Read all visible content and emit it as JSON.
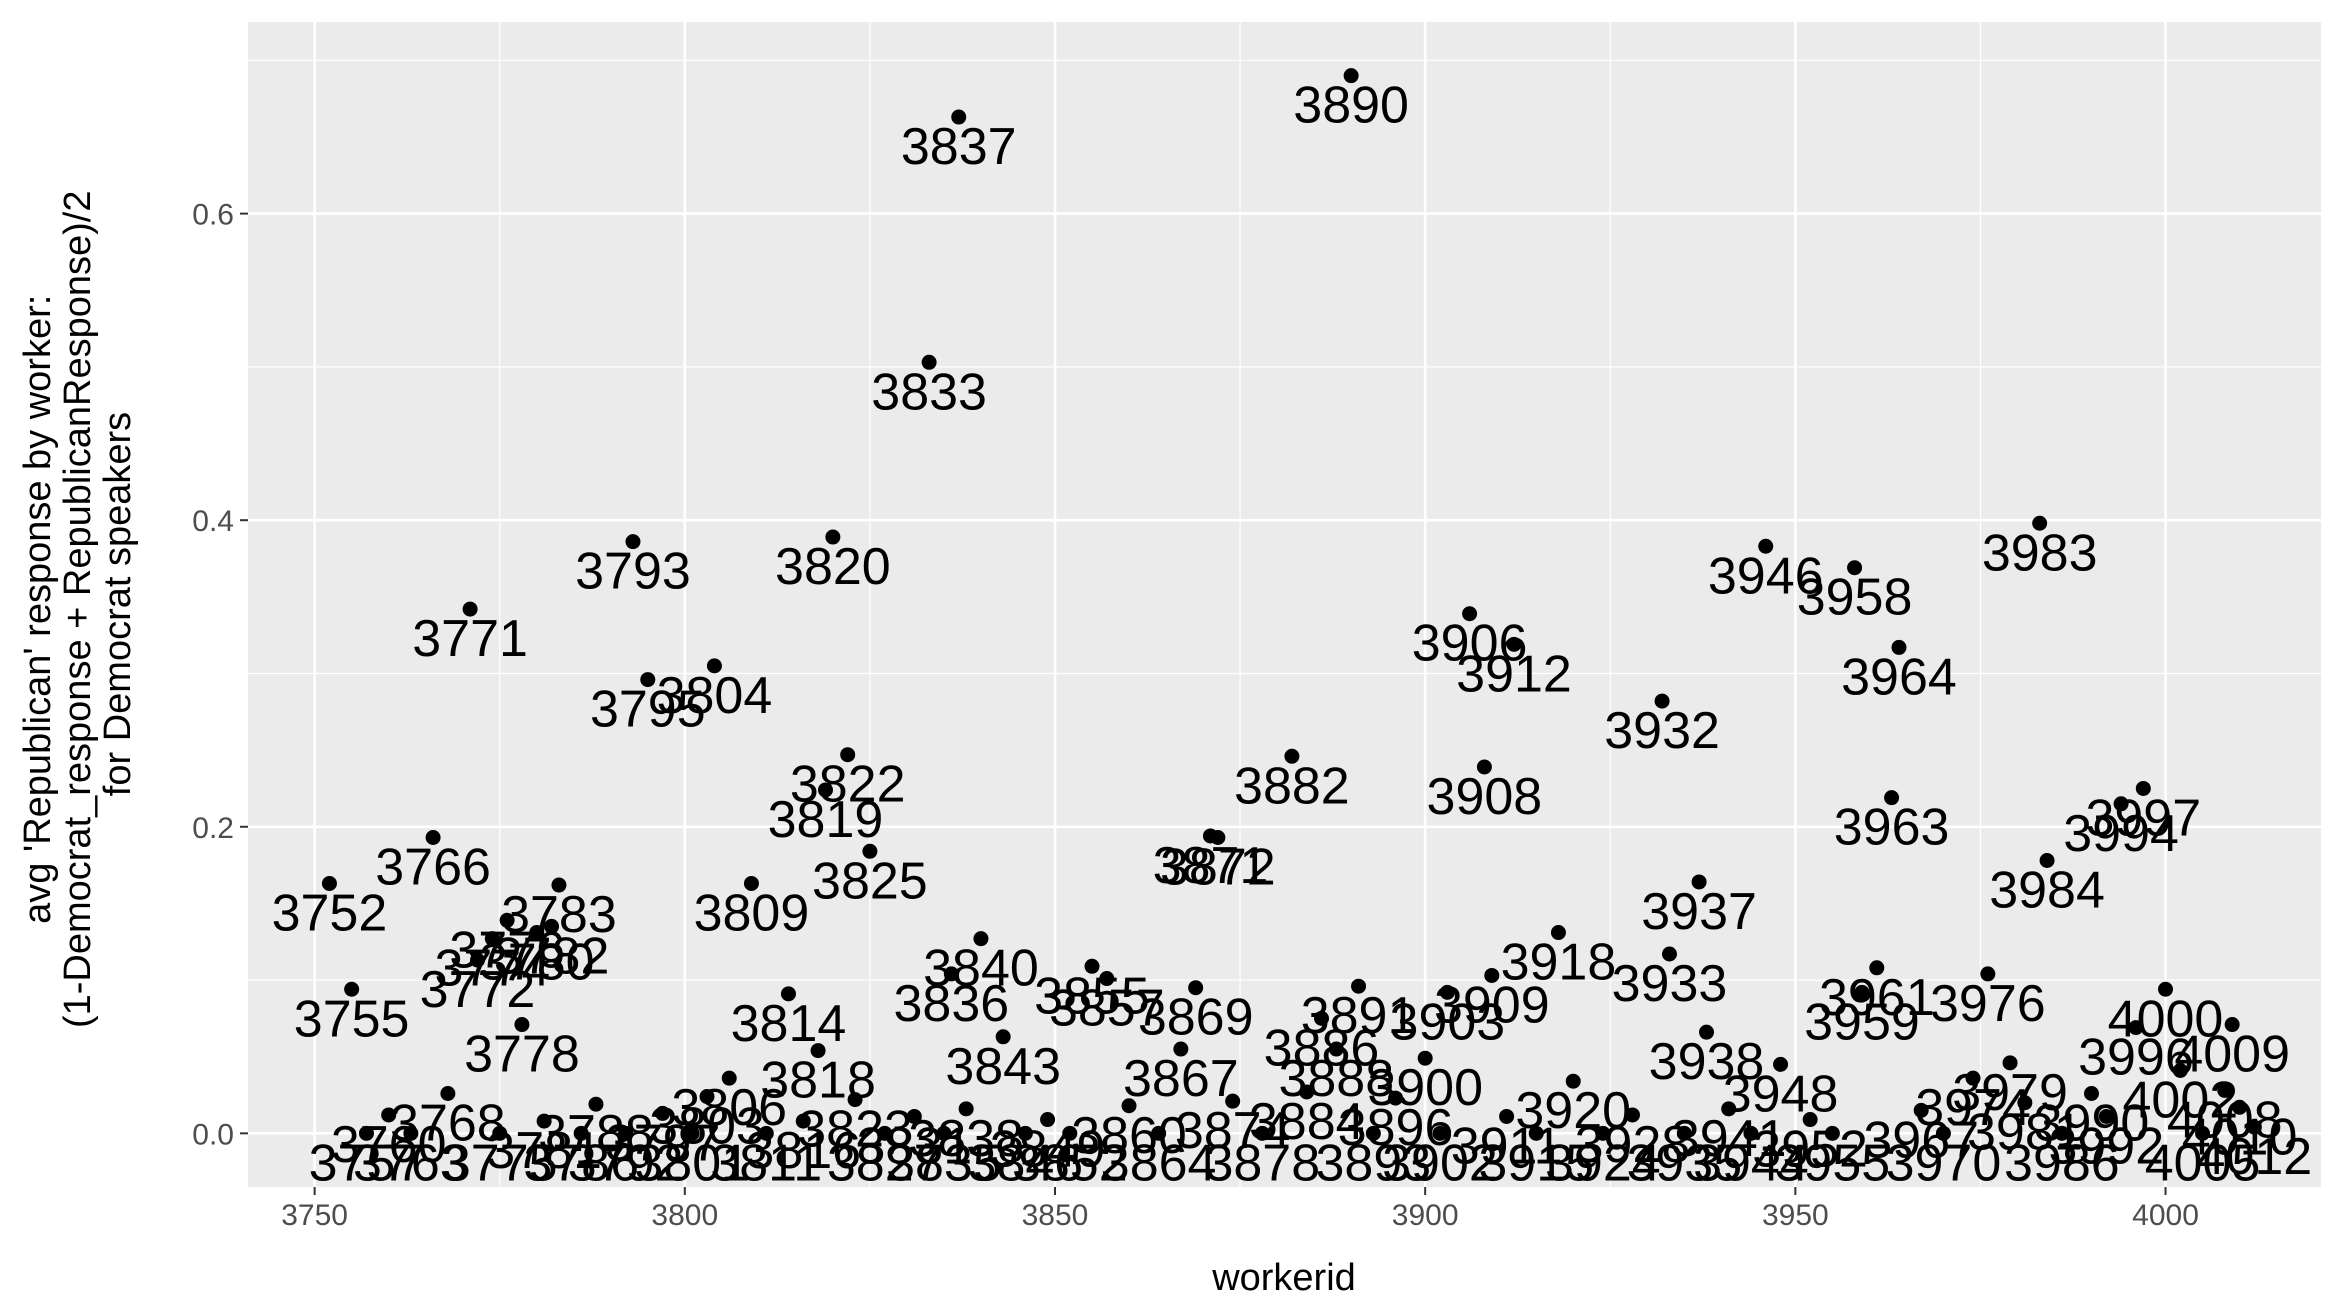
{
  "chart_data": {
    "type": "scatter",
    "xlabel": "workerid",
    "ylabel_lines": [
      "avg 'Republican' response by worker:",
      "(1-Democrat_response + RepublicanResponse)/2",
      "for Democrat speakers"
    ],
    "xlim": [
      3741,
      4021
    ],
    "ylim": [
      -0.035,
      0.725
    ],
    "x_ticks": [
      3750,
      3800,
      3850,
      3900,
      3950,
      4000
    ],
    "x_tick_labels": [
      "3750",
      "3800",
      "3850",
      "3900",
      "3950",
      "4000"
    ],
    "y_ticks": [
      0.0,
      0.2,
      0.4,
      0.6
    ],
    "y_tick_labels": [
      "0.0",
      "0.2",
      "0.4",
      "0.6"
    ],
    "grid": true,
    "background": "#ebebeb",
    "grid_color": "#ffffff",
    "point_color": "#000000",
    "points": [
      {
        "x": 3752,
        "y": 0.163,
        "label": "3752"
      },
      {
        "x": 3755,
        "y": 0.094,
        "label": "3755"
      },
      {
        "x": 3766,
        "y": 0.193,
        "label": "3766"
      },
      {
        "x": 3771,
        "y": 0.342,
        "label": "3771"
      },
      {
        "x": 3772,
        "y": 0.113,
        "label": "3772"
      },
      {
        "x": 3774,
        "y": 0.127,
        "label": "3774"
      },
      {
        "x": 3776,
        "y": 0.139,
        "label": "3776"
      },
      {
        "x": 3778,
        "y": 0.071,
        "label": "3778"
      },
      {
        "x": 3780,
        "y": 0.131,
        "label": "3780"
      },
      {
        "x": 3782,
        "y": 0.135,
        "label": "3782"
      },
      {
        "x": 3783,
        "y": 0.162,
        "label": "3783"
      },
      {
        "x": 3793,
        "y": 0.386,
        "label": "3793"
      },
      {
        "x": 3795,
        "y": 0.296,
        "label": "3795"
      },
      {
        "x": 3804,
        "y": 0.305,
        "label": "3804"
      },
      {
        "x": 3809,
        "y": 0.163,
        "label": "3809"
      },
      {
        "x": 3814,
        "y": 0.091,
        "label": "3814"
      },
      {
        "x": 3818,
        "y": 0.054,
        "label": "3818"
      },
      {
        "x": 3819,
        "y": 0.224,
        "label": "3819"
      },
      {
        "x": 3820,
        "y": 0.389,
        "label": "3820"
      },
      {
        "x": 3822,
        "y": 0.247,
        "label": "3822"
      },
      {
        "x": 3825,
        "y": 0.184,
        "label": "3825"
      },
      {
        "x": 3833,
        "y": 0.503,
        "label": "3833"
      },
      {
        "x": 3836,
        "y": 0.104,
        "label": "3836"
      },
      {
        "x": 3837,
        "y": 0.663,
        "label": "3837"
      },
      {
        "x": 3840,
        "y": 0.127,
        "label": "3840"
      },
      {
        "x": 3843,
        "y": 0.063,
        "label": "3843"
      },
      {
        "x": 3855,
        "y": 0.109,
        "label": "3855"
      },
      {
        "x": 3857,
        "y": 0.101,
        "label": "3857"
      },
      {
        "x": 3867,
        "y": 0.055,
        "label": "3867"
      },
      {
        "x": 3869,
        "y": 0.095,
        "label": "3869"
      },
      {
        "x": 3871,
        "y": 0.194,
        "label": "3871"
      },
      {
        "x": 3872,
        "y": 0.193,
        "label": "3872"
      },
      {
        "x": 3882,
        "y": 0.246,
        "label": "3882"
      },
      {
        "x": 3886,
        "y": 0.075,
        "label": "3886"
      },
      {
        "x": 3888,
        "y": 0.055,
        "label": "3888"
      },
      {
        "x": 3890,
        "y": 0.69,
        "label": "3890"
      },
      {
        "x": 3891,
        "y": 0.096,
        "label": "3891"
      },
      {
        "x": 3900,
        "y": 0.049,
        "label": "3900"
      },
      {
        "x": 3903,
        "y": 0.092,
        "label": "3903"
      },
      {
        "x": 3906,
        "y": 0.339,
        "label": "3906"
      },
      {
        "x": 3908,
        "y": 0.239,
        "label": "3908"
      },
      {
        "x": 3909,
        "y": 0.103,
        "label": "3909"
      },
      {
        "x": 3912,
        "y": 0.319,
        "label": "3912"
      },
      {
        "x": 3918,
        "y": 0.131,
        "label": "3918"
      },
      {
        "x": 3932,
        "y": 0.282,
        "label": "3932"
      },
      {
        "x": 3933,
        "y": 0.117,
        "label": "3933"
      },
      {
        "x": 3937,
        "y": 0.164,
        "label": "3937"
      },
      {
        "x": 3938,
        "y": 0.066,
        "label": "3938"
      },
      {
        "x": 3946,
        "y": 0.383,
        "label": "3946"
      },
      {
        "x": 3948,
        "y": 0.045,
        "label": "3948"
      },
      {
        "x": 3958,
        "y": 0.369,
        "label": "3958"
      },
      {
        "x": 3959,
        "y": 0.092,
        "label": "3959"
      },
      {
        "x": 3961,
        "y": 0.108,
        "label": "3961"
      },
      {
        "x": 3963,
        "y": 0.219,
        "label": "3963"
      },
      {
        "x": 3964,
        "y": 0.317,
        "label": "3964"
      },
      {
        "x": 3974,
        "y": 0.036,
        "label": "3974"
      },
      {
        "x": 3976,
        "y": 0.104,
        "label": "3976"
      },
      {
        "x": 3979,
        "y": 0.046,
        "label": "3979"
      },
      {
        "x": 3983,
        "y": 0.398,
        "label": "3983"
      },
      {
        "x": 3984,
        "y": 0.178,
        "label": "3984"
      },
      {
        "x": 3990,
        "y": 0.026,
        "label": "3990"
      },
      {
        "x": 3994,
        "y": 0.215,
        "label": "3994"
      },
      {
        "x": 3996,
        "y": 0.069,
        "label": "3996"
      },
      {
        "x": 3997,
        "y": 0.225,
        "label": "3997"
      },
      {
        "x": 4000,
        "y": 0.094,
        "label": "4000"
      },
      {
        "x": 4002,
        "y": 0.041,
        "label": "4002"
      },
      {
        "x": 4008,
        "y": 0.028,
        "label": "4008"
      },
      {
        "x": 4009,
        "y": 0.071,
        "label": "4009"
      },
      {
        "x": 4012,
        "y": 0.004,
        "label": "4012"
      },
      {
        "x": 3757,
        "y": 0.0,
        "label": "3757"
      },
      {
        "x": 3760,
        "y": 0.012,
        "label": "3760"
      },
      {
        "x": 3763,
        "y": 0.0,
        "label": "3763"
      },
      {
        "x": 3768,
        "y": 0.026,
        "label": "3768"
      },
      {
        "x": 3775,
        "y": 0.0,
        "label": "3775"
      },
      {
        "x": 3781,
        "y": 0.008,
        "label": "3781"
      },
      {
        "x": 3786,
        "y": 0.0,
        "label": "3786"
      },
      {
        "x": 3788,
        "y": 0.019,
        "label": "3788"
      },
      {
        "x": 3792,
        "y": 0.0,
        "label": "3792"
      },
      {
        "x": 3797,
        "y": 0.013,
        "label": "3797"
      },
      {
        "x": 3801,
        "y": 0.0,
        "label": "3801"
      },
      {
        "x": 3803,
        "y": 0.024,
        "label": "3803"
      },
      {
        "x": 3806,
        "y": 0.036,
        "label": "3806"
      },
      {
        "x": 3811,
        "y": 0.0,
        "label": "3811"
      },
      {
        "x": 3816,
        "y": 0.008,
        "label": "3816"
      },
      {
        "x": 3823,
        "y": 0.022,
        "label": "3823"
      },
      {
        "x": 3827,
        "y": 0.0,
        "label": "3827"
      },
      {
        "x": 3831,
        "y": 0.011,
        "label": "3831"
      },
      {
        "x": 3835,
        "y": 0.0,
        "label": "3835"
      },
      {
        "x": 3838,
        "y": 0.016,
        "label": "3838"
      },
      {
        "x": 3846,
        "y": 0.0,
        "label": "3846"
      },
      {
        "x": 3849,
        "y": 0.009,
        "label": "3849"
      },
      {
        "x": 3852,
        "y": 0.0,
        "label": "3852"
      },
      {
        "x": 3860,
        "y": 0.018,
        "label": "3860"
      },
      {
        "x": 3864,
        "y": 0.0,
        "label": "3864"
      },
      {
        "x": 3874,
        "y": 0.021,
        "label": "3874"
      },
      {
        "x": 3878,
        "y": 0.0,
        "label": "3878"
      },
      {
        "x": 3884,
        "y": 0.027,
        "label": "3884"
      },
      {
        "x": 3893,
        "y": 0.0,
        "label": "3893"
      },
      {
        "x": 3896,
        "y": 0.023,
        "label": "3896"
      },
      {
        "x": 3902,
        "y": 0.0,
        "label": "3902"
      },
      {
        "x": 3911,
        "y": 0.011,
        "label": "3911"
      },
      {
        "x": 3915,
        "y": 0.0,
        "label": "3915"
      },
      {
        "x": 3920,
        "y": 0.034,
        "label": "3920"
      },
      {
        "x": 3924,
        "y": 0.0,
        "label": "3924"
      },
      {
        "x": 3928,
        "y": 0.012,
        "label": "3928"
      },
      {
        "x": 3935,
        "y": 0.0,
        "label": "3935"
      },
      {
        "x": 3941,
        "y": 0.016,
        "label": "3941"
      },
      {
        "x": 3944,
        "y": 0.0,
        "label": "3944"
      },
      {
        "x": 3952,
        "y": 0.009,
        "label": "3952"
      },
      {
        "x": 3955,
        "y": 0.0,
        "label": "3955"
      },
      {
        "x": 3967,
        "y": 0.015,
        "label": "3967"
      },
      {
        "x": 3970,
        "y": 0.0,
        "label": "3970"
      },
      {
        "x": 3981,
        "y": 0.02,
        "label": "3981"
      },
      {
        "x": 3986,
        "y": 0.0,
        "label": "3986"
      },
      {
        "x": 3992,
        "y": 0.011,
        "label": "3992"
      },
      {
        "x": 4005,
        "y": 0.0,
        "label": "4005"
      },
      {
        "x": 4010,
        "y": 0.017,
        "label": "4010"
      }
    ]
  }
}
